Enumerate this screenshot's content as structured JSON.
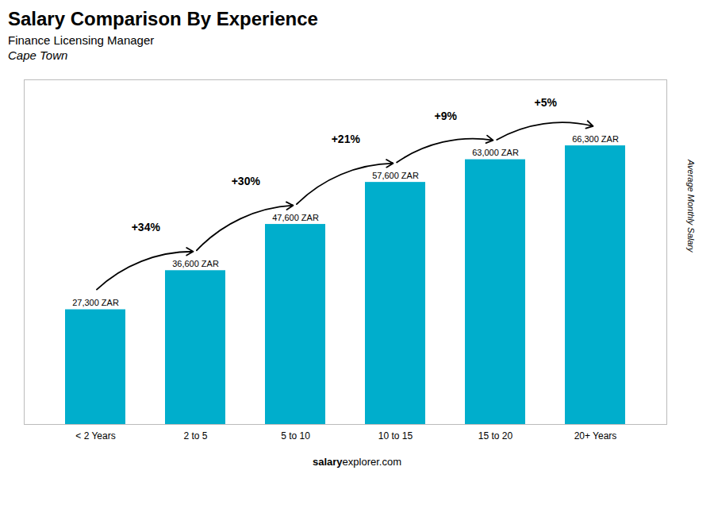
{
  "chart_data": {
    "type": "bar",
    "title": "Salary Comparison By Experience",
    "subtitle": [
      "Finance Licensing Manager",
      "Cape Town"
    ],
    "ylabel": "Average Monthly Salary",
    "caption": [
      "salary",
      "explorer.com"
    ],
    "categories": [
      "< 2 Years",
      "2 to 5",
      "5 to 10",
      "10 to 15",
      "15 to 20",
      "20+ Years"
    ],
    "values": [
      27300,
      36600,
      47600,
      57600,
      63000,
      66300
    ],
    "value_labels": [
      "27,300 ZAR",
      "36,600 ZAR",
      "47,600 ZAR",
      "57,600 ZAR",
      "63,000 ZAR",
      "66,300 ZAR"
    ],
    "data_labels": true,
    "color": "#00AECC",
    "ylim": [
      0,
      82000
    ],
    "tick_labels": "x",
    "grid": false,
    "annotations": [
      {
        "text": "+34%",
        "from": "< 2 Years",
        "to": "2 to 5"
      },
      {
        "text": "+30%",
        "from": "2 to 5",
        "to": "5 to 10"
      },
      {
        "text": "+21%",
        "from": "5 to 10",
        "to": "10 to 15"
      },
      {
        "text": "+9%",
        "from": "10 to 15",
        "to": "15 to 20"
      },
      {
        "text": "+5%",
        "from": "15 to 20",
        "to": "20+ Years"
      }
    ]
  }
}
